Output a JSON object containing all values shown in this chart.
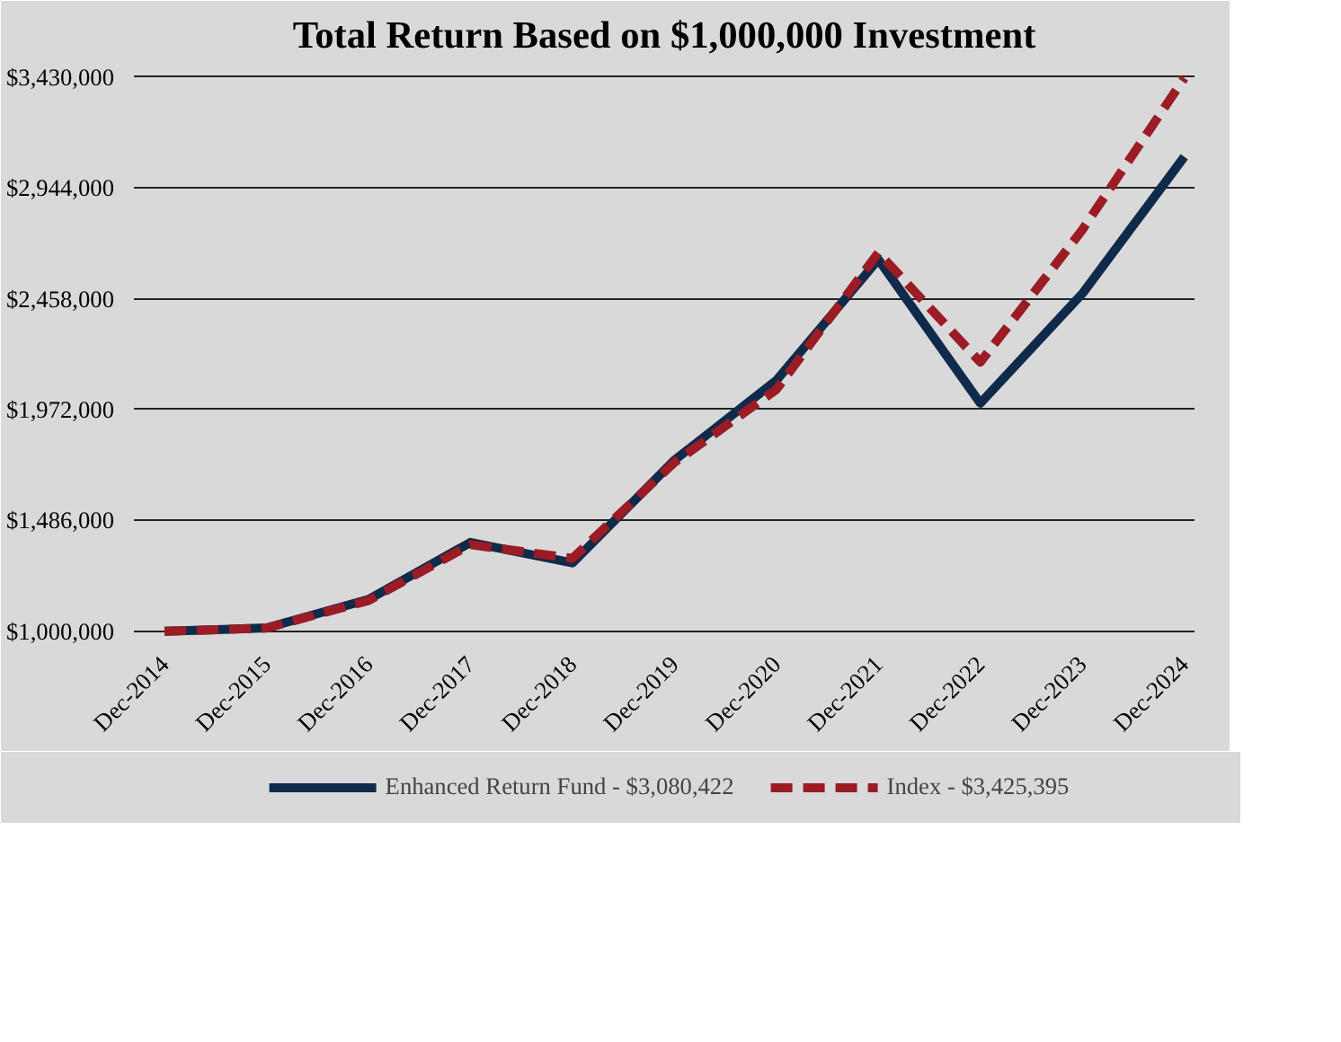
{
  "chart_data": {
    "type": "line",
    "title": "Total Return Based on $1,000,000 Investment",
    "categories": [
      "Dec-2014",
      "Dec-2015",
      "Dec-2016",
      "Dec-2017",
      "Dec-2018",
      "Dec-2019",
      "Dec-2020",
      "Dec-2021",
      "Dec-2022",
      "Dec-2023",
      "Dec-2024"
    ],
    "series": [
      {
        "name": "Enhanced Return Fund - $3,080,422",
        "color": "#0f2a4a",
        "line_style": "solid",
        "values": [
          1000000,
          1015000,
          1140000,
          1390000,
          1300000,
          1750000,
          2100000,
          2630000,
          2000000,
          2480000,
          3080422
        ]
      },
      {
        "name": "Index - $3,425,395",
        "color": "#9b1c25",
        "line_style": "dashed",
        "values": [
          1000000,
          1014000,
          1135000,
          1380000,
          1320000,
          1740000,
          2060000,
          2660000,
          2180000,
          2760000,
          3425395
        ]
      }
    ],
    "ylim": [
      960000,
      3480000
    ],
    "yticks": [
      {
        "value": 1000000,
        "label": "$1,000,000"
      },
      {
        "value": 1486000,
        "label": "$1,486,000"
      },
      {
        "value": 1972000,
        "label": "$1,972,000"
      },
      {
        "value": 2458000,
        "label": "$2,458,000"
      },
      {
        "value": 2944000,
        "label": "$2,944,000"
      },
      {
        "value": 3430000,
        "label": "$3,430,000"
      }
    ],
    "grid": "y",
    "legend": "bottom",
    "marker": "none"
  }
}
